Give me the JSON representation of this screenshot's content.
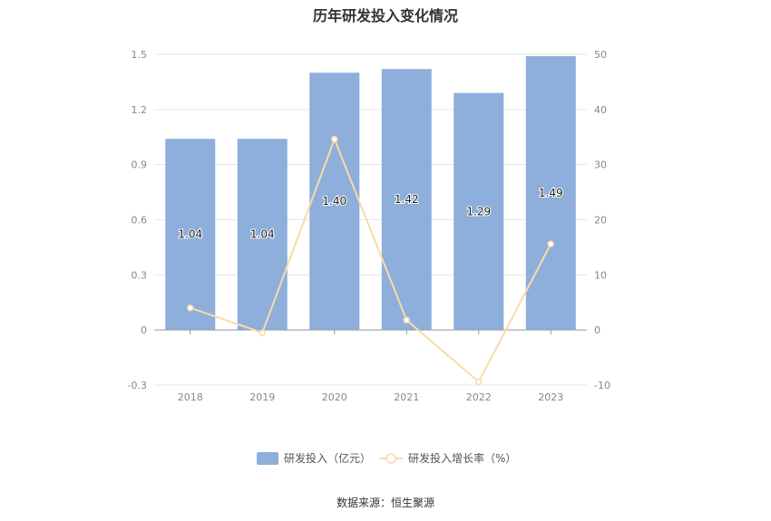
{
  "title": "历年研发投入变化情况",
  "source": "数据来源：恒生聚源",
  "chart_data": {
    "type": "bar",
    "categories": [
      "2018",
      "2019",
      "2020",
      "2021",
      "2022",
      "2023"
    ],
    "series": [
      {
        "name": "研发投入（亿元）",
        "type": "bar",
        "axis": "left",
        "values": [
          1.04,
          1.04,
          1.4,
          1.42,
          1.29,
          1.49
        ],
        "color": "#8eaedb"
      },
      {
        "name": "研发投入增长率（%）",
        "type": "line",
        "axis": "right",
        "values": [
          4.0,
          -0.5,
          34.6,
          1.8,
          -9.4,
          15.6
        ],
        "color": "#f8dba8"
      }
    ],
    "left_axis": {
      "min": -0.3,
      "max": 1.5,
      "ticks": [
        "-0.3",
        "0",
        "0.3",
        "0.6",
        "0.9",
        "1.2",
        "1.5"
      ]
    },
    "right_axis": {
      "min": -10,
      "max": 50,
      "ticks": [
        "-10",
        "0",
        "10",
        "20",
        "30",
        "40",
        "50"
      ]
    },
    "bar_labels": [
      "1.04",
      "1.04",
      "1.40",
      "1.42",
      "1.29",
      "1.49"
    ],
    "grid": true,
    "legend_position": "bottom"
  }
}
